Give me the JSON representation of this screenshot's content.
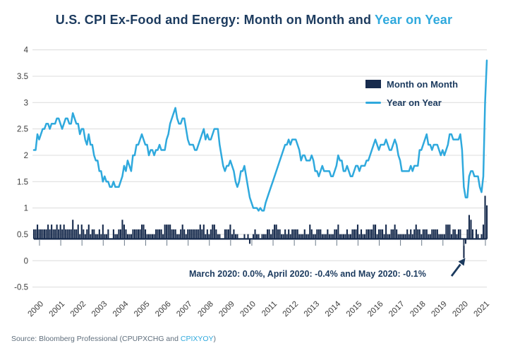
{
  "title": {
    "prefix": "U.S. CPI Ex-Food and Energy: Month on Month and ",
    "highlight": "Year on Year"
  },
  "legend": {
    "mom_label": "Month on Month",
    "yoy_label": "Year on Year"
  },
  "annotation": {
    "text": "March 2020: 0.0%, April 2020: -0.4% and May 2020: -0.1%"
  },
  "source": {
    "prefix": "Source: Bloomberg Professional (CPUPXCHG and ",
    "link": "CPIXYOY",
    "suffix": ")"
  },
  "colors": {
    "navy": "#1b3a5e",
    "bar_navy": "#172b4d",
    "line_blue": "#2fa9dd",
    "grid_gray": "#dcdcdc",
    "axis_text": "#3c3c3c",
    "source_gray": "#5f6e7c"
  },
  "chart_data": {
    "type": "bar+line",
    "title": "U.S. CPI Ex-Food and Energy: Month on Month and Year on Year",
    "x_tick_labels": [
      "2000",
      "2001",
      "2002",
      "2003",
      "2004",
      "2005",
      "2006",
      "2007",
      "2008",
      "2009",
      "2010",
      "2011",
      "2012",
      "2013",
      "2014",
      "2015",
      "2016",
      "2017",
      "2018",
      "2019",
      "2020",
      "2021"
    ],
    "y_ticks": [
      4,
      3.5,
      3,
      2.5,
      2,
      1.5,
      1,
      0.5,
      0,
      -0.5
    ],
    "ylim": [
      -0.5,
      4
    ],
    "grid": true,
    "legend_position": "upper-right-inside",
    "x_unit": "monthly from Jan 2000 to May 2021",
    "series": [
      {
        "name": "Month on Month",
        "type": "bar",
        "values": [
          0.2,
          0.2,
          0.3,
          0.2,
          0.2,
          0.2,
          0.2,
          0.2,
          0.3,
          0.2,
          0.3,
          0.2,
          0.2,
          0.3,
          0.2,
          0.3,
          0.2,
          0.3,
          0.2,
          0.2,
          0.2,
          0.2,
          0.4,
          0.2,
          0.2,
          0.3,
          0.1,
          0.3,
          0.2,
          0.1,
          0.2,
          0.3,
          0.1,
          0.2,
          0.2,
          0.1,
          0.1,
          0.2,
          0.1,
          0.3,
          0.1,
          0.1,
          0.2,
          0.0,
          0.0,
          0.2,
          0.1,
          0.1,
          0.2,
          0.2,
          0.4,
          0.3,
          0.2,
          0.1,
          0.1,
          0.1,
          0.2,
          0.2,
          0.2,
          0.2,
          0.2,
          0.3,
          0.3,
          0.2,
          0.1,
          0.1,
          0.1,
          0.1,
          0.1,
          0.2,
          0.2,
          0.2,
          0.2,
          0.1,
          0.3,
          0.3,
          0.3,
          0.3,
          0.2,
          0.2,
          0.2,
          0.1,
          0.1,
          0.2,
          0.3,
          0.2,
          0.1,
          0.2,
          0.2,
          0.2,
          0.2,
          0.2,
          0.2,
          0.2,
          0.3,
          0.2,
          0.3,
          0.1,
          0.2,
          0.1,
          0.2,
          0.3,
          0.3,
          0.2,
          0.1,
          0.1,
          0.0,
          0.0,
          0.2,
          0.2,
          0.2,
          0.3,
          0.1,
          0.2,
          0.1,
          0.1,
          0.0,
          0.0,
          0.0,
          0.1,
          0.0,
          0.1,
          -0.1,
          0.0,
          0.1,
          0.2,
          0.1,
          0.1,
          0.0,
          0.1,
          0.1,
          0.1,
          0.2,
          0.2,
          0.1,
          0.2,
          0.3,
          0.3,
          0.2,
          0.2,
          0.1,
          0.1,
          0.2,
          0.1,
          0.2,
          0.1,
          0.2,
          0.2,
          0.2,
          0.2,
          0.1,
          0.1,
          0.1,
          0.2,
          0.1,
          0.1,
          0.3,
          0.2,
          0.1,
          0.1,
          0.2,
          0.2,
          0.2,
          0.1,
          0.1,
          0.1,
          0.2,
          0.1,
          0.1,
          0.1,
          0.2,
          0.2,
          0.3,
          0.1,
          0.1,
          0.1,
          0.1,
          0.2,
          0.1,
          0.1,
          0.2,
          0.2,
          0.2,
          0.3,
          0.1,
          0.2,
          0.1,
          0.1,
          0.2,
          0.2,
          0.2,
          0.2,
          0.3,
          0.3,
          0.1,
          0.2,
          0.2,
          0.2,
          0.1,
          0.3,
          0.1,
          0.1,
          0.2,
          0.2,
          0.3,
          0.2,
          0.1,
          0.1,
          0.1,
          0.1,
          0.1,
          0.2,
          0.1,
          0.2,
          0.1,
          0.2,
          0.3,
          0.2,
          0.2,
          0.1,
          0.2,
          0.2,
          0.2,
          0.1,
          0.1,
          0.2,
          0.2,
          0.2,
          0.2,
          0.1,
          0.1,
          0.1,
          0.1,
          0.3,
          0.3,
          0.3,
          0.1,
          0.2,
          0.2,
          0.1,
          0.2,
          0.2,
          0.0,
          -0.4,
          -0.1,
          0.2,
          0.5,
          0.4,
          0.2,
          0.0,
          0.2,
          0.1,
          0.0,
          0.1,
          0.3,
          0.9,
          0.7
        ]
      },
      {
        "name": "Year on Year",
        "type": "line",
        "values": [
          2.1,
          2.1,
          2.4,
          2.3,
          2.4,
          2.5,
          2.5,
          2.6,
          2.6,
          2.5,
          2.6,
          2.6,
          2.6,
          2.7,
          2.7,
          2.6,
          2.5,
          2.6,
          2.7,
          2.7,
          2.6,
          2.6,
          2.8,
          2.7,
          2.6,
          2.6,
          2.4,
          2.5,
          2.5,
          2.3,
          2.2,
          2.4,
          2.2,
          2.2,
          2.0,
          1.9,
          1.9,
          1.7,
          1.7,
          1.5,
          1.6,
          1.5,
          1.5,
          1.4,
          1.4,
          1.5,
          1.4,
          1.4,
          1.4,
          1.5,
          1.6,
          1.8,
          1.7,
          1.9,
          1.8,
          1.7,
          2.0,
          2.0,
          2.2,
          2.2,
          2.3,
          2.4,
          2.3,
          2.2,
          2.2,
          2.0,
          2.1,
          2.1,
          2.0,
          2.1,
          2.1,
          2.2,
          2.1,
          2.1,
          2.1,
          2.3,
          2.4,
          2.6,
          2.7,
          2.8,
          2.9,
          2.7,
          2.6,
          2.6,
          2.7,
          2.7,
          2.5,
          2.3,
          2.2,
          2.2,
          2.2,
          2.1,
          2.1,
          2.2,
          2.3,
          2.4,
          2.5,
          2.3,
          2.4,
          2.3,
          2.3,
          2.4,
          2.5,
          2.5,
          2.5,
          2.2,
          2.0,
          1.8,
          1.7,
          1.8,
          1.8,
          1.9,
          1.8,
          1.7,
          1.5,
          1.4,
          1.5,
          1.7,
          1.7,
          1.8,
          1.6,
          1.4,
          1.2,
          1.1,
          1.0,
          1.0,
          1.0,
          0.95,
          1.0,
          0.95,
          0.95,
          1.1,
          1.2,
          1.3,
          1.4,
          1.5,
          1.6,
          1.7,
          1.8,
          1.9,
          2.0,
          2.1,
          2.2,
          2.2,
          2.3,
          2.2,
          2.3,
          2.3,
          2.3,
          2.2,
          2.1,
          1.9,
          2.0,
          2.0,
          1.9,
          1.9,
          1.9,
          2.0,
          1.9,
          1.7,
          1.7,
          1.6,
          1.7,
          1.8,
          1.7,
          1.7,
          1.7,
          1.7,
          1.6,
          1.6,
          1.7,
          1.8,
          2.0,
          1.9,
          1.9,
          1.7,
          1.7,
          1.8,
          1.7,
          1.6,
          1.6,
          1.7,
          1.8,
          1.8,
          1.7,
          1.8,
          1.8,
          1.8,
          1.9,
          1.9,
          2.0,
          2.1,
          2.2,
          2.3,
          2.2,
          2.1,
          2.2,
          2.2,
          2.2,
          2.3,
          2.2,
          2.1,
          2.1,
          2.2,
          2.3,
          2.2,
          2.0,
          1.9,
          1.7,
          1.7,
          1.7,
          1.7,
          1.7,
          1.8,
          1.7,
          1.8,
          1.8,
          1.8,
          2.1,
          2.1,
          2.2,
          2.3,
          2.4,
          2.2,
          2.2,
          2.1,
          2.2,
          2.2,
          2.2,
          2.1,
          2.0,
          2.1,
          2.0,
          2.1,
          2.2,
          2.4,
          2.4,
          2.3,
          2.3,
          2.3,
          2.3,
          2.4,
          2.1,
          1.4,
          1.2,
          1.2,
          1.6,
          1.7,
          1.7,
          1.6,
          1.6,
          1.6,
          1.4,
          1.3,
          1.6,
          3.0,
          3.8
        ]
      }
    ]
  }
}
